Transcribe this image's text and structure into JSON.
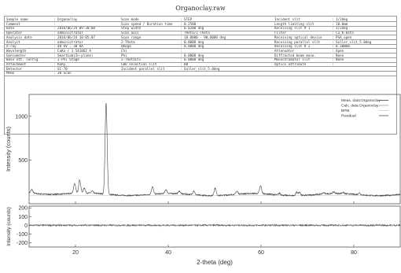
{
  "window": {
    "title": "Organoclay.raw"
  },
  "metadata": {
    "columns": [
      [
        {
          "label": "Sample name",
          "value": ": Organoclay"
        },
        {
          "label": "Comment",
          "value": ":"
        },
        {
          "label": "Date",
          "value": ": 2016/06/24 09:30:00"
        },
        {
          "label": "Operator",
          "value": ": administrator"
        },
        {
          "label": "Analysis date",
          "value": ": 2016/06/24 10:05:07"
        },
        {
          "label": "Analyst",
          "value": ": administrator"
        },
        {
          "label": "X-ray",
          "value": ": 40 kV , 30 mA"
        },
        {
          "label": "Wavelength",
          "value": ": CuKa / 1.541862 A"
        },
        {
          "label": "Goniometer",
          "value": ": SmartLab(In-plane)"
        },
        {
          "label": "Base att. config.",
          "value": ": 2-Phi Stage"
        },
        {
          "label": "Attachment",
          "value": ": RxRy"
        },
        {
          "label": "Detector",
          "value": ": SC-70"
        },
        {
          "label": "Memo",
          "value": ": 30 Scan"
        }
      ],
      [
        {
          "label": "Scan mode",
          "value": ": STEP"
        },
        {
          "label": "Scan speed / Duration time",
          "value": ": 0.2500"
        },
        {
          "label": "Step width",
          "value": ": 0.0200 deg"
        },
        {
          "label": "Scan axis",
          "value": ": Theta/2-Theta"
        },
        {
          "label": "Scan range",
          "value": ": 10.0000 - 90.0000 deg"
        },
        {
          "label": "2-Theta",
          "value": ": 0.0000 deg"
        },
        {
          "label": "Omega",
          "value": ": 0.0000 deg"
        },
        {
          "label": "Chi",
          "value": ":"
        },
        {
          "label": "Phi",
          "value": ": 0.0000 deg"
        },
        {
          "label": "2-ThetaChi",
          "value": ": 0.0000 deg"
        },
        {
          "label": "CBO selection slit",
          "value": ": BB"
        },
        {
          "label": "Incident parallel slit",
          "value": ": Soller_slit_5.0deg"
        }
      ],
      [
        {
          "label": "Incident slit",
          "value": ": 1/2deg"
        },
        {
          "label": "Length limiting slit",
          "value": ": 10.0mm"
        },
        {
          "label": "Receiving slit # 1",
          "value": ": 1/2deg"
        },
        {
          "label": "Filter",
          "value": ": Cu_K-beta"
        },
        {
          "label": "Receiving optical device",
          "value": ": PSA_open"
        },
        {
          "label": "Receiving parallel slit",
          "value": ": Soller_slit_5.0deg"
        },
        {
          "label": "Receiving slit # 2",
          "value": ": 0.300mm"
        },
        {
          "label": "Attenuator",
          "value": ": Open"
        },
        {
          "label": "Diffracted beam mono.",
          "value": ": None"
        },
        {
          "label": "Monochromator slit",
          "value": ": None"
        },
        {
          "label": "Optics attribute",
          "value": ":"
        }
      ]
    ]
  },
  "chart_data": [
    {
      "type": "line",
      "ylabel": "Intensity (counts)",
      "xlim": [
        10,
        90
      ],
      "ylim": [
        0,
        1250
      ],
      "yticks": [
        500,
        1000
      ],
      "legend": [
        "Meas. data:Organoclay",
        "Calc. data:Organoclay",
        "BPM",
        "Residual"
      ],
      "legend_position": "top-right",
      "series": [
        {
          "name": "Meas. data:Organoclay",
          "color": "#444444",
          "baseline": 105,
          "peaks": [
            [
              10.6,
              40
            ],
            [
              19.8,
              110
            ],
            [
              20.9,
              150
            ],
            [
              21.9,
              60
            ],
            [
              23.6,
              25
            ],
            [
              26.6,
              1040
            ],
            [
              36.6,
              85
            ],
            [
              39.5,
              45
            ],
            [
              42.4,
              30
            ],
            [
              45.5,
              45
            ],
            [
              50.1,
              85
            ],
            [
              54.8,
              35
            ],
            [
              59.9,
              90
            ],
            [
              64.0,
              20
            ],
            [
              67.7,
              40
            ],
            [
              68.3,
              35
            ],
            [
              73.5,
              15
            ],
            [
              75.7,
              20
            ],
            [
              77.7,
              15
            ],
            [
              81.2,
              20
            ]
          ]
        },
        {
          "name": "Calc. data:Organoclay",
          "color": "#999999"
        },
        {
          "name": "BPM",
          "color": "#cccccc"
        }
      ]
    },
    {
      "type": "line",
      "xlabel": "2-theta (deg)",
      "ylabel": "Intensity (counts)",
      "xlim": [
        10,
        90
      ],
      "ylim": [
        -250,
        220
      ],
      "yticks": [
        -200,
        -100,
        0,
        100,
        200
      ],
      "xticks": [
        20,
        40,
        60,
        80
      ],
      "series": [
        {
          "name": "Residual",
          "color": "#555555",
          "amplitude": 12
        }
      ]
    }
  ]
}
